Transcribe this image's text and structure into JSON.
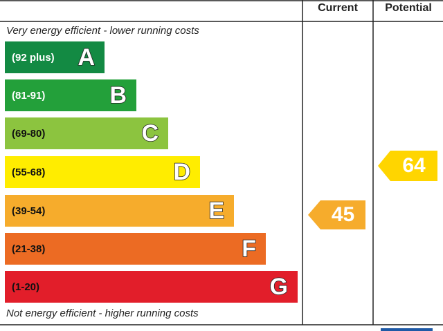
{
  "header": {
    "current": "Current",
    "potential": "Potential"
  },
  "top_note": "Very energy efficient - lower running costs",
  "bottom_note": "Not energy efficient - higher running costs",
  "bands": [
    {
      "range": "(92 plus)",
      "letter": "A",
      "color": "#138a43",
      "text_color": "#ffffff"
    },
    {
      "range": "(81-91)",
      "letter": "B",
      "color": "#23a03a",
      "text_color": "#ffffff"
    },
    {
      "range": "(69-80)",
      "letter": "C",
      "color": "#8cc43f",
      "text_color": "#111111"
    },
    {
      "range": "(55-68)",
      "letter": "D",
      "color": "#ffed00",
      "text_color": "#111111"
    },
    {
      "range": "(39-54)",
      "letter": "E",
      "color": "#f6ac2c",
      "text_color": "#111111"
    },
    {
      "range": "(21-38)",
      "letter": "F",
      "color": "#ec6b23",
      "text_color": "#111111"
    },
    {
      "range": "(1-20)",
      "letter": "G",
      "color": "#e21e2a",
      "text_color": "#111111"
    }
  ],
  "current": {
    "value": 45,
    "color": "#f6ac2c"
  },
  "potential": {
    "value": 64,
    "color": "#ffd500"
  }
}
